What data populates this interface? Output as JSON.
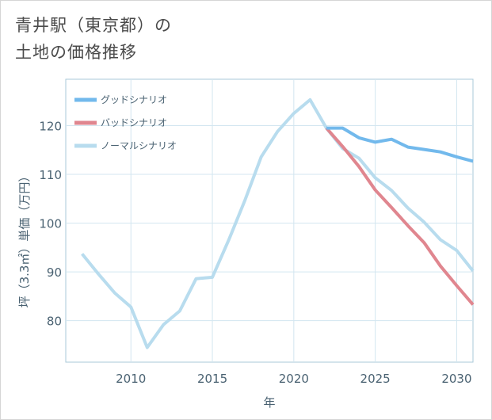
{
  "title_line1": "青井駅（東京都）の",
  "title_line2": "土地の価格推移",
  "chart_data": {
    "type": "line",
    "title": "青井駅（東京都）の土地の価格推移",
    "xlabel": "年",
    "ylabel": "坪（3.3㎡）単価（万円）",
    "xlim": [
      2006,
      2031
    ],
    "ylim": [
      71.5,
      129.5
    ],
    "x_ticks": [
      2010,
      2015,
      2020,
      2025,
      2030
    ],
    "y_ticks": [
      80,
      90,
      100,
      110,
      120
    ],
    "grid": true,
    "legend_position": "top-left",
    "series": [
      {
        "name": "グッドシナリオ",
        "color": "#72b9ec",
        "x": [
          2022,
          2023,
          2024,
          2025,
          2026,
          2027,
          2028,
          2029,
          2030,
          2031
        ],
        "values": [
          119.5,
          119.5,
          117.5,
          116.6,
          117.2,
          115.6,
          115.1,
          114.6,
          113.6,
          112.7
        ]
      },
      {
        "name": "バッドシナリオ",
        "color": "#e0868f",
        "x": [
          2022,
          2023,
          2024,
          2025,
          2026,
          2027,
          2028,
          2029,
          2030,
          2031
        ],
        "values": [
          119.5,
          115.7,
          111.6,
          106.8,
          103.2,
          99.5,
          96.0,
          91.2,
          87.2,
          83.3
        ]
      },
      {
        "name": "ノーマルシナリオ",
        "color": "#b8dcee",
        "x": [
          2007,
          2008,
          2009,
          2010,
          2011,
          2012,
          2013,
          2014,
          2015,
          2016,
          2017,
          2018,
          2019,
          2020,
          2021,
          2022,
          2023,
          2024,
          2025,
          2026,
          2027,
          2028,
          2029,
          2030,
          2031
        ],
        "values": [
          93.7,
          89.6,
          85.7,
          82.8,
          74.5,
          79.2,
          82.0,
          88.6,
          88.9,
          96.5,
          104.7,
          113.6,
          118.8,
          122.5,
          125.3,
          119.5,
          115.3,
          113.3,
          109.3,
          106.7,
          103.1,
          100.2,
          96.6,
          94.4,
          90.2
        ]
      }
    ]
  }
}
